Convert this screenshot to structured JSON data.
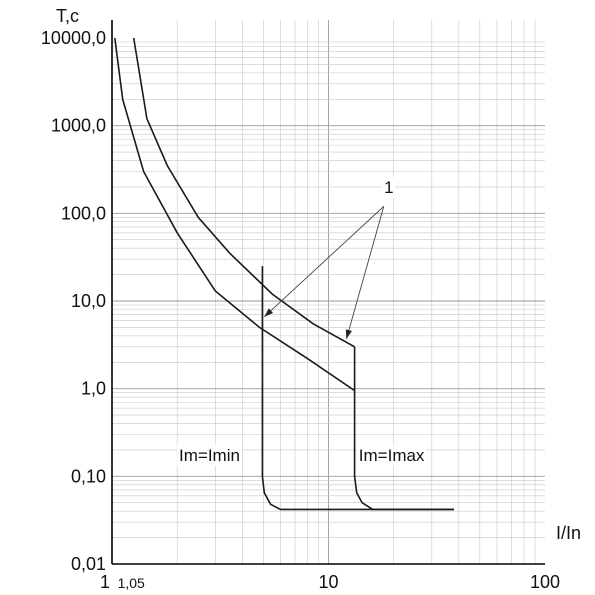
{
  "chart_data": {
    "type": "line",
    "x_scale": "log",
    "y_scale": "log",
    "xlim": [
      1,
      100
    ],
    "ylim": [
      0.01,
      10000
    ],
    "grid": true,
    "ylabel": "T,c",
    "xlabel": "I/In",
    "x_ticks": [
      {
        "value": 1,
        "label": "1",
        "small": false
      },
      {
        "value": 1.05,
        "label": "1,05",
        "small": true
      },
      {
        "value": 10,
        "label": "10",
        "small": false
      },
      {
        "value": 100,
        "label": "100",
        "small": false
      }
    ],
    "y_ticks": [
      {
        "value": 10000,
        "label": "10000,0"
      },
      {
        "value": 1000,
        "label": "1000,0"
      },
      {
        "value": 100,
        "label": "100,0"
      },
      {
        "value": 10,
        "label": "10,0"
      },
      {
        "value": 1,
        "label": "1,0"
      },
      {
        "value": 0.1,
        "label": "0,10"
      },
      {
        "value": 0.01,
        "label": "0,01"
      }
    ],
    "series": [
      {
        "key": "upper-band",
        "points": [
          [
            1.26,
            10000
          ],
          [
            1.45,
            1200
          ],
          [
            1.8,
            350
          ],
          [
            2.5,
            90
          ],
          [
            3.5,
            35
          ],
          [
            5.5,
            12
          ],
          [
            8.5,
            5.5
          ],
          [
            13.2,
            3
          ]
        ]
      },
      {
        "key": "lower-band",
        "points": [
          [
            1.03,
            10000
          ],
          [
            1.12,
            2000
          ],
          [
            1.4,
            300
          ],
          [
            2,
            60
          ],
          [
            3,
            13
          ],
          [
            4.8,
            5
          ],
          [
            8,
            2.2
          ],
          [
            13.2,
            0.95
          ]
        ]
      },
      {
        "key": "trip-min",
        "points": [
          [
            4.95,
            25
          ],
          [
            4.95,
            0.1
          ],
          [
            5.05,
            0.065
          ],
          [
            5.4,
            0.048
          ],
          [
            6,
            0.042
          ],
          [
            38,
            0.042
          ]
        ]
      },
      {
        "key": "trip-max",
        "points": [
          [
            13.2,
            3
          ],
          [
            13.2,
            0.1
          ],
          [
            13.5,
            0.065
          ],
          [
            14.3,
            0.05
          ],
          [
            16,
            0.042
          ],
          [
            38,
            0.042
          ]
        ]
      }
    ],
    "annotations": [
      {
        "text": "Im=Imin",
        "x": 3.9,
        "y": 0.15,
        "anchor": "end"
      },
      {
        "text": "Im=Imax",
        "x": 13.8,
        "y": 0.15,
        "anchor": "start"
      },
      {
        "text": "1",
        "x": 19,
        "y": 170,
        "anchor": "middle"
      }
    ],
    "leaders": [
      {
        "from": [
          18,
          120
        ],
        "to": [
          5.05,
          6.6
        ]
      },
      {
        "from": [
          18,
          120
        ],
        "to": [
          12.1,
          3.7
        ]
      }
    ]
  }
}
